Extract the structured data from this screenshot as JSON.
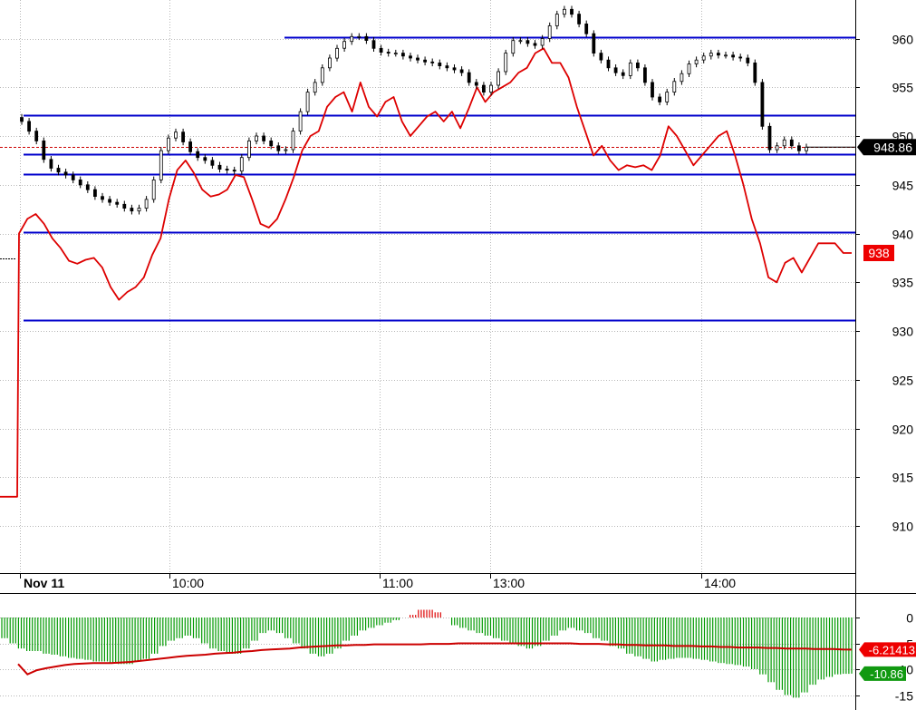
{
  "chart_data": [
    {
      "type": "line",
      "panel": "price",
      "date_label": "Nov 11",
      "x_tick_labels": [
        "10:00",
        "11:00",
        "13:00",
        "14:00"
      ],
      "y_ticks": [
        910,
        915,
        920,
        925,
        930,
        935,
        940,
        945,
        950,
        955,
        960
      ],
      "ylim": [
        905.5,
        965.5
      ],
      "grid": true,
      "legend": "none",
      "horizontal_levels": [
        {
          "value": 960.1,
          "from": "10:40"
        },
        {
          "value": 952.1,
          "from": "start"
        },
        {
          "value": 948.1,
          "from": "start"
        },
        {
          "value": 946.1,
          "from": "start"
        },
        {
          "value": 940.1,
          "from": "start"
        },
        {
          "value": 931.1,
          "from": "start"
        }
      ],
      "reference_line": {
        "value": 948.9,
        "style": "dashed",
        "color": "#cc0000"
      },
      "last_price_label": "948.86",
      "red_line_label": "938",
      "series": [
        {
          "kind": "candlestick_close",
          "color": "#000000",
          "values": [
            951.5,
            950.5,
            949.5,
            947.6,
            946.7,
            946.3,
            946.0,
            945.5,
            945.0,
            944.5,
            943.8,
            943.5,
            943.2,
            943.0,
            942.6,
            942.3,
            942.6,
            943.5,
            945.5,
            948.5,
            949.8,
            950.4,
            949.4,
            948.4,
            947.8,
            947.5,
            947.0,
            946.6,
            946.5,
            946.4,
            947.8,
            949.5,
            950.0,
            949.5,
            949.0,
            948.5,
            948.6,
            950.5,
            952.5,
            954.5,
            955.5,
            957.0,
            958.0,
            959.0,
            959.7,
            960.2,
            960.2,
            959.8,
            959.0,
            958.6,
            958.5,
            958.5,
            958.2,
            958.0,
            957.8,
            957.6,
            957.5,
            957.2,
            957.0,
            956.8,
            956.5,
            955.5,
            955.2,
            954.5,
            955.2,
            956.6,
            958.5,
            959.8,
            959.8,
            959.5,
            959.3,
            960.0,
            961.3,
            962.5,
            963.0,
            962.5,
            961.5,
            960.5,
            958.5,
            957.8,
            957.0,
            956.5,
            956.2,
            957.5,
            957.0,
            955.5,
            954.0,
            953.5,
            954.5,
            955.6,
            956.4,
            957.4,
            957.8,
            958.2,
            958.5,
            958.3,
            958.3,
            958.1,
            958.0,
            957.5,
            955.5,
            951.0,
            948.6,
            949.0,
            949.6,
            949.0,
            948.5,
            948.86
          ]
        },
        {
          "kind": "line",
          "color": "#dd0000",
          "values": [
            913.0,
            913.0,
            940.0,
            941.5,
            942.0,
            941.0,
            939.5,
            938.5,
            937.2,
            936.9,
            937.3,
            937.5,
            936.5,
            934.5,
            933.2,
            934.0,
            934.5,
            935.5,
            937.8,
            939.5,
            943.5,
            946.5,
            947.5,
            946.2,
            944.5,
            943.8,
            944.0,
            944.5,
            946.0,
            945.8,
            943.5,
            941.0,
            940.6,
            941.5,
            943.5,
            945.8,
            948.5,
            950.0,
            950.5,
            953.0,
            954.0,
            954.5,
            952.5,
            955.5,
            953.0,
            952.0,
            953.5,
            954.0,
            951.5,
            950.0,
            951.0,
            952.0,
            952.5,
            951.5,
            952.5,
            950.8,
            952.8,
            955.0,
            953.5,
            954.5,
            955.0,
            955.5,
            956.5,
            957.0,
            958.5,
            959.0,
            957.5,
            957.5,
            956.0,
            953.0,
            950.5,
            948.0,
            949.0,
            947.5,
            946.5,
            947.0,
            946.8,
            947.0,
            946.5,
            948.0,
            951.0,
            950.0,
            948.5,
            947.0,
            948.0,
            949.0,
            950.0,
            950.5,
            948.0,
            945.0,
            941.5,
            939.0,
            935.5,
            935.0,
            937.0,
            937.5,
            936.0,
            937.5,
            939.0,
            939.0,
            939.0,
            938.0,
            938.0
          ]
        }
      ]
    },
    {
      "type": "bar",
      "panel": "oscillator",
      "y_ticks": [
        0,
        -5,
        -10,
        -15
      ],
      "ylim": [
        -17,
        3
      ],
      "grid": true,
      "legend": "none",
      "labels": {
        "signal": "-6.21413",
        "histogram": "-10.86"
      },
      "series": [
        {
          "kind": "histogram",
          "color": "#009900",
          "values": [
            -4,
            -5,
            -6,
            -6.5,
            -6.5,
            -7,
            -7.2,
            -7.5,
            -7.8,
            -8,
            -8.2,
            -8.5,
            -8.5,
            -8.8,
            -9,
            -9,
            -8.5,
            -8,
            -7,
            -5.5,
            -4.5,
            -4,
            -3.5,
            -4,
            -5,
            -6,
            -6.5,
            -7,
            -7,
            -6,
            -4.5,
            -3,
            -2.5,
            -3,
            -4,
            -5,
            -6,
            -7,
            -7.5,
            -7,
            -6,
            -4.5,
            -3.5,
            -2.5,
            -2,
            -1.5,
            -1,
            -0.5,
            0,
            0.5,
            1.5,
            1.5,
            1,
            0,
            -1.5,
            -2,
            -2.5,
            -3,
            -3.5,
            -4,
            -4.5,
            -5,
            -5.5,
            -6,
            -5.5,
            -4.5,
            -3.5,
            -2.5,
            -2,
            -2.5,
            -3,
            -4,
            -4.5,
            -5.5,
            -6,
            -7,
            -7.5,
            -8,
            -8.5,
            -8.2,
            -8,
            -7.8,
            -7.8,
            -8,
            -8.2,
            -8.5,
            -8.8,
            -9,
            -9.2,
            -9.5,
            -10,
            -11,
            -12.5,
            -14,
            -15,
            -15.5,
            -14.5,
            -13,
            -12,
            -11.5,
            -11,
            -10.9,
            -10.86
          ]
        },
        {
          "kind": "line",
          "color": "#cc0000",
          "values": [
            -9,
            -11,
            -10.2,
            -9.8,
            -9.5,
            -9.2,
            -9.0,
            -8.9,
            -8.8,
            -8.8,
            -8.8,
            -8.7,
            -8.6,
            -8.4,
            -8.2,
            -8.0,
            -7.8,
            -7.6,
            -7.4,
            -7.3,
            -7.2,
            -7.0,
            -6.9,
            -6.8,
            -6.6,
            -6.5,
            -6.3,
            -6.2,
            -6.1,
            -6.0,
            -5.8,
            -5.7,
            -5.6,
            -5.5,
            -5.4,
            -5.4,
            -5.3,
            -5.3,
            -5.2,
            -5.2,
            -5.2,
            -5.2,
            -5.2,
            -5.2,
            -5.1,
            -5.1,
            -5.1,
            -5.0,
            -5.0,
            -5.0,
            -5.0,
            -5.0,
            -5.0,
            -5.0,
            -5.0,
            -5.0,
            -5.0,
            -5.0,
            -5.0,
            -5.0,
            -5.1,
            -5.1,
            -5.1,
            -5.2,
            -5.2,
            -5.3,
            -5.3,
            -5.4,
            -5.4,
            -5.4,
            -5.5,
            -5.5,
            -5.5,
            -5.6,
            -5.6,
            -5.7,
            -5.7,
            -5.8,
            -5.8,
            -5.8,
            -5.9,
            -5.9,
            -6.0,
            -6.0,
            -6.0,
            -6.1,
            -6.1,
            -6.1,
            -6.2,
            -6.21413
          ]
        }
      ]
    }
  ]
}
